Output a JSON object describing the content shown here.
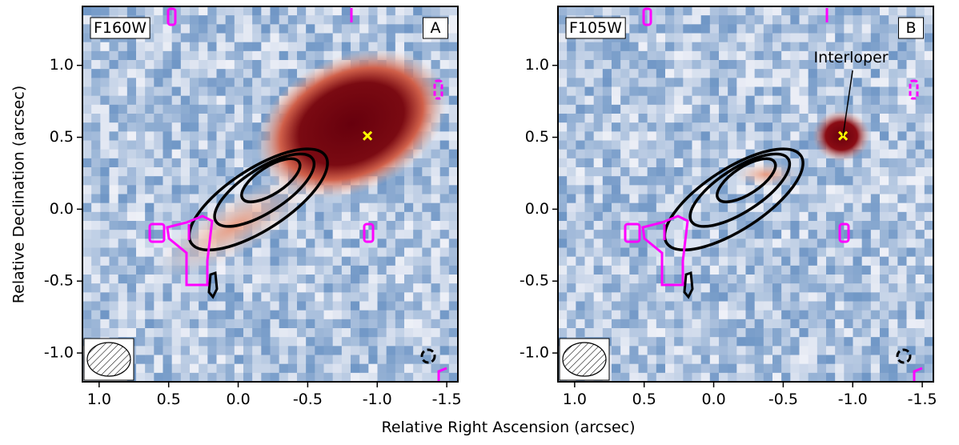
{
  "figure": {
    "xlabel": "Relative Right Ascension (arcsec)",
    "ylabel": "Relative Declination (arcsec)"
  },
  "chart_data": [
    {
      "type": "image",
      "panel_label": "F160W",
      "panel_letter": "A",
      "xlim": [
        1.12,
        -1.58
      ],
      "ylim": [
        -1.2,
        1.41
      ],
      "xticks": [
        {
          "value": 1.0,
          "label": "1.0"
        },
        {
          "value": 0.5,
          "label": "0.5"
        },
        {
          "value": 0.0,
          "label": "0.0"
        },
        {
          "value": -0.5,
          "label": "-0.5"
        },
        {
          "value": -1.0,
          "label": "-1.0"
        },
        {
          "value": -1.5,
          "label": "-1.5"
        }
      ],
      "yticks": [
        {
          "value": 1.0,
          "label": "1.0"
        },
        {
          "value": 0.5,
          "label": "0.5"
        },
        {
          "value": 0.0,
          "label": "0.0"
        },
        {
          "value": -0.5,
          "label": "-0.5"
        },
        {
          "value": -1.0,
          "label": "-1.0"
        }
      ],
      "markers": [
        {
          "x": -0.93,
          "y": 0.51,
          "color": "#ffff00"
        }
      ]
    },
    {
      "type": "image",
      "panel_label": "F105W",
      "panel_letter": "B",
      "xlim": [
        1.12,
        -1.58
      ],
      "ylim": [
        -1.2,
        1.41
      ],
      "xticks": [
        {
          "value": 1.0,
          "label": "1.0"
        },
        {
          "value": 0.5,
          "label": "0.5"
        },
        {
          "value": 0.0,
          "label": "0.0"
        },
        {
          "value": -0.5,
          "label": "-0.5"
        },
        {
          "value": -1.0,
          "label": "-1.0"
        },
        {
          "value": -1.5,
          "label": "-1.5"
        }
      ],
      "yticks": [
        {
          "value": 1.0,
          "label": "1.0"
        },
        {
          "value": 0.5,
          "label": "0.5"
        },
        {
          "value": 0.0,
          "label": "0.0"
        },
        {
          "value": -0.5,
          "label": "-0.5"
        },
        {
          "value": -1.0,
          "label": "-1.0"
        }
      ],
      "markers": [
        {
          "x": -0.93,
          "y": 0.51,
          "color": "#ffff00"
        }
      ],
      "annotation": "Interloper"
    }
  ]
}
